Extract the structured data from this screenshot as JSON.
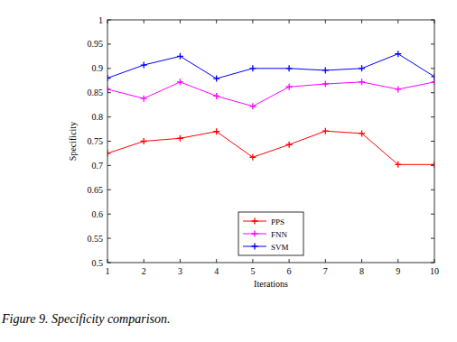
{
  "chart_data": {
    "type": "line",
    "caption": "Figure 9. Specificity comparison.",
    "x_label": "Iterations",
    "y_label": "Specificity",
    "x": [
      1,
      2,
      3,
      4,
      5,
      6,
      7,
      8,
      9,
      10
    ],
    "series": [
      {
        "name": "PPS",
        "color": "#ff0000",
        "marker": "plus",
        "line_style": "solid",
        "values": [
          0.725,
          0.75,
          0.756,
          0.77,
          0.717,
          0.743,
          0.771,
          0.766,
          0.702,
          0.702
        ]
      },
      {
        "name": "FNN",
        "color": "#ff00ff",
        "marker": "plus",
        "line_style": "solid",
        "values": [
          0.857,
          0.838,
          0.872,
          0.843,
          0.822,
          0.862,
          0.868,
          0.872,
          0.857,
          0.872
        ]
      },
      {
        "name": "SVM",
        "color": "#0000ff",
        "marker": "plus",
        "line_style": "solid",
        "values": [
          0.88,
          0.907,
          0.925,
          0.879,
          0.9,
          0.9,
          0.896,
          0.9,
          0.93,
          0.883
        ]
      }
    ],
    "xlim": [
      1,
      10
    ],
    "ylim": [
      0.5,
      1
    ],
    "xticks": [
      1,
      2,
      3,
      4,
      5,
      6,
      7,
      8,
      9,
      10
    ],
    "yticks": [
      0.5,
      0.55,
      0.6,
      0.65,
      0.7,
      0.75,
      0.8,
      0.85,
      0.9,
      0.95,
      1
    ],
    "grid": false,
    "legend": "bottom"
  }
}
